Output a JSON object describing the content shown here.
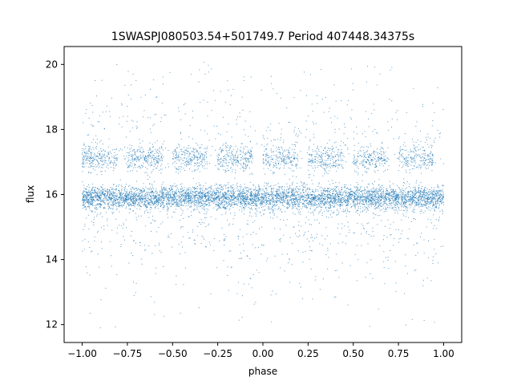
{
  "chart_data": {
    "type": "scatter",
    "title": "1SWASPJ080503.54+501749.7 Period 407448.34375s",
    "xlabel": "phase",
    "ylabel": "flux",
    "xlim": [
      -1.1,
      1.1
    ],
    "ylim": [
      11.45,
      20.55
    ],
    "x_ticks": [
      -1.0,
      -0.75,
      -0.5,
      -0.25,
      0.0,
      0.25,
      0.5,
      0.75,
      1.0
    ],
    "x_tick_labels": [
      "−1.00",
      "−0.75",
      "−0.50",
      "−0.25",
      "0.00",
      "0.25",
      "0.50",
      "0.75",
      "1.00"
    ],
    "y_ticks": [
      12,
      14,
      16,
      18,
      20
    ],
    "y_tick_labels": [
      "12",
      "14",
      "16",
      "18",
      "20"
    ],
    "grid": false,
    "color": "#1f77b4",
    "series": [
      {
        "description_bands": [
          {
            "center": 15.9,
            "spread": 0.3,
            "density": "very high"
          },
          {
            "center": 17.1,
            "spread": 0.3,
            "density": "medium"
          }
        ],
        "phase_range": [
          -1.0,
          1.0
        ],
        "flux_range": [
          11.8,
          20.1
        ],
        "points": [
          [
            -0.98,
            15.9
          ],
          [
            -0.9,
            16.05
          ],
          [
            -0.82,
            15.8
          ],
          [
            -0.76,
            17.1
          ],
          [
            -0.7,
            16.0
          ],
          [
            -0.62,
            15.85
          ],
          [
            -0.55,
            17.15
          ],
          [
            -0.45,
            15.95
          ],
          [
            -0.38,
            14.6
          ],
          [
            -0.3,
            16.1
          ],
          [
            -0.22,
            17.05
          ],
          [
            -0.15,
            15.7
          ],
          [
            -0.05,
            16.0
          ],
          [
            0.02,
            15.9
          ],
          [
            0.1,
            17.1
          ],
          [
            0.18,
            14.8
          ],
          [
            0.25,
            16.0
          ],
          [
            0.33,
            15.8
          ],
          [
            0.4,
            17.2
          ],
          [
            0.48,
            16.05
          ],
          [
            0.55,
            15.9
          ],
          [
            0.62,
            18.0
          ],
          [
            0.7,
            15.95
          ],
          [
            0.78,
            17.1
          ],
          [
            0.85,
            14.5
          ],
          [
            0.92,
            16.0
          ],
          [
            0.98,
            15.85
          ]
        ]
      }
    ]
  }
}
